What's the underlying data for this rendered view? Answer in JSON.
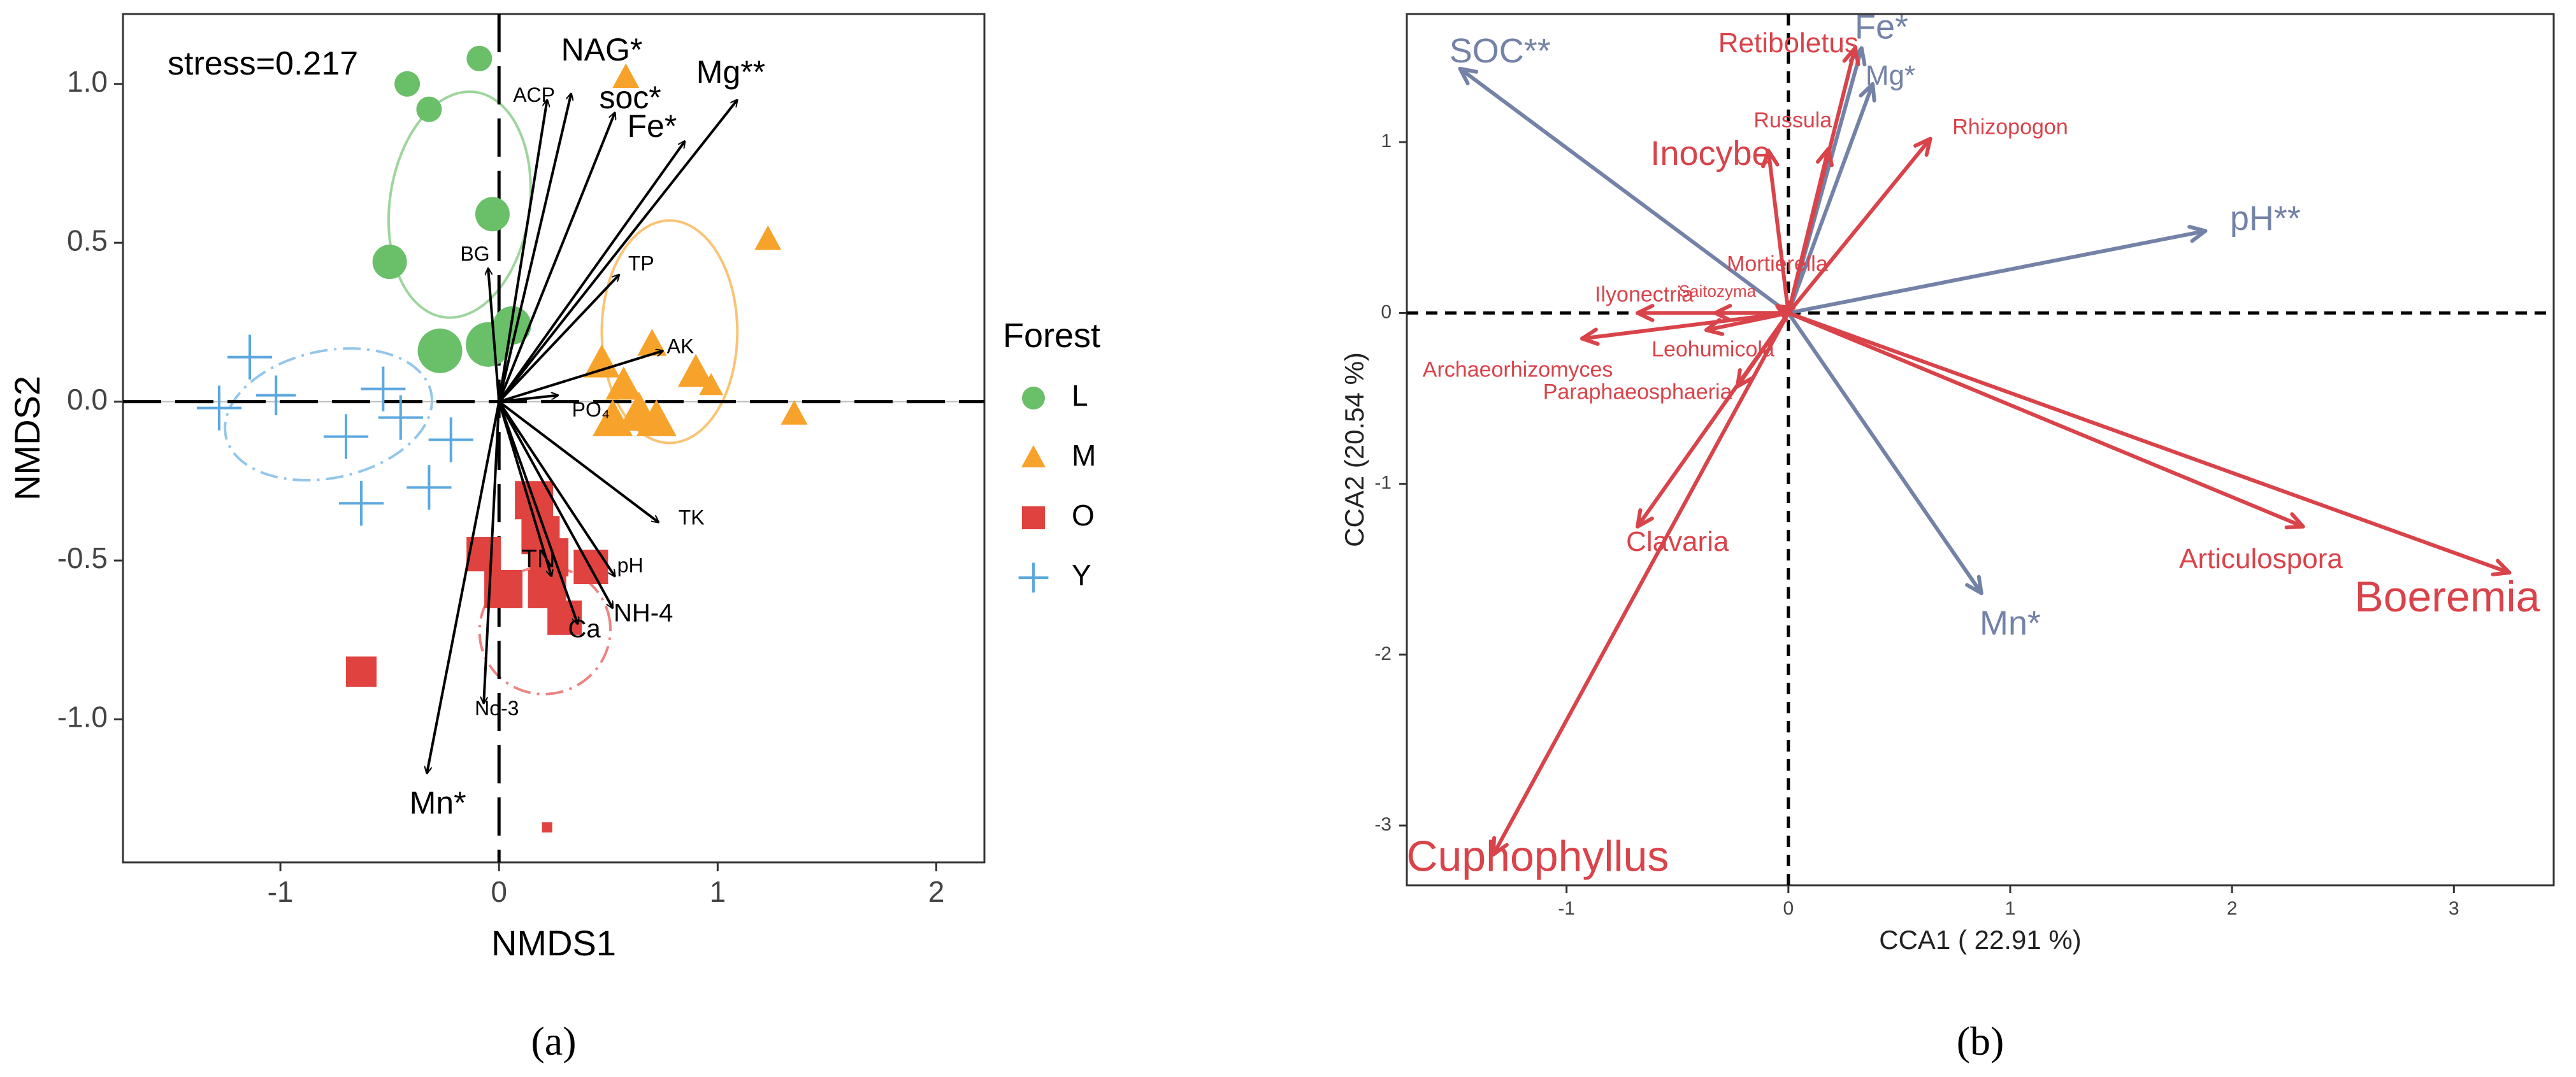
{
  "colors": {
    "L": "#6abf69",
    "M": "#f7a32b",
    "O": "#e0423f",
    "Y": "#5ba8df",
    "cca_red": "#d9434a",
    "cca_blue": "#7382a6",
    "axis": "#333333",
    "grid": "#bdbdbd"
  },
  "chart_data": [
    {
      "type": "scatter",
      "panel_caption": "(a)",
      "annotation": "stress=0.217",
      "xlabel": "NMDS1",
      "ylabel": "NMDS2",
      "xlim": [
        -1.72,
        2.22
      ],
      "ylim": [
        -1.45,
        1.22
      ],
      "xticks": [
        -1,
        0,
        1,
        2
      ],
      "yticks": [
        -1.0,
        -0.5,
        0.0,
        0.5,
        1.0
      ],
      "x_tick_labels": [
        "-1",
        "0",
        "1",
        "2"
      ],
      "y_tick_labels": [
        "-1.0",
        "-0.5",
        "0.0",
        "0.5",
        "1.0"
      ],
      "legend": {
        "title": "Forest",
        "position": "right",
        "entries": [
          {
            "key": "L",
            "label": "L",
            "shape": "circle"
          },
          {
            "key": "M",
            "label": "M",
            "shape": "triangle"
          },
          {
            "key": "O",
            "label": "O",
            "shape": "square"
          },
          {
            "key": "Y",
            "label": "Y",
            "shape": "plus"
          }
        ]
      },
      "series": [
        {
          "name": "L",
          "shape": "circle",
          "points": [
            [
              -0.42,
              1.0,
              1
            ],
            [
              -0.32,
              0.92,
              1
            ],
            [
              -0.09,
              1.08,
              1
            ],
            [
              -0.5,
              0.44,
              1.35
            ],
            [
              -0.03,
              0.59,
              1.35
            ],
            [
              -0.27,
              0.16,
              1.75
            ],
            [
              -0.05,
              0.18,
              1.75
            ],
            [
              0.06,
              0.24,
              1.5
            ]
          ]
        },
        {
          "name": "M",
          "shape": "triangle",
          "points": [
            [
              0.58,
              1.02,
              1
            ],
            [
              1.23,
              0.51,
              1
            ],
            [
              0.7,
              0.18,
              1.1
            ],
            [
              0.47,
              0.12,
              1.35
            ],
            [
              0.9,
              0.09,
              1.35
            ],
            [
              0.57,
              0.05,
              1.35
            ],
            [
              0.64,
              -0.04,
              1.6
            ],
            [
              0.52,
              -0.06,
              1.5
            ],
            [
              0.72,
              -0.06,
              1.5
            ],
            [
              1.35,
              -0.04,
              1
            ],
            [
              0.97,
              0.05,
              0.9
            ]
          ]
        },
        {
          "name": "O",
          "shape": "square",
          "points": [
            [
              0.16,
              -0.31,
              1.5
            ],
            [
              0.19,
              -0.42,
              1.5
            ],
            [
              -0.07,
              -0.48,
              1.35
            ],
            [
              0.23,
              -0.49,
              1.5
            ],
            [
              0.42,
              -0.52,
              1.35
            ],
            [
              0.02,
              -0.59,
              1.5
            ],
            [
              0.22,
              -0.59,
              1.5
            ],
            [
              0.3,
              -0.68,
              1.35
            ],
            [
              -0.63,
              -0.85,
              1.2
            ],
            [
              0.22,
              -1.34,
              0.4
            ]
          ]
        },
        {
          "name": "Y",
          "shape": "plus",
          "points": [
            [
              -1.14,
              0.14,
              1.35
            ],
            [
              -1.02,
              0.02,
              1.2
            ],
            [
              -1.28,
              -0.02,
              1.35
            ],
            [
              -0.53,
              0.04,
              1.35
            ],
            [
              -0.45,
              -0.05,
              1.35
            ],
            [
              -0.7,
              -0.11,
              1.35
            ],
            [
              -0.22,
              -0.12,
              1.35
            ],
            [
              -0.32,
              -0.27,
              1.35
            ],
            [
              -0.63,
              -0.32,
              1.35
            ]
          ]
        }
      ],
      "ellipses": [
        {
          "group": "L",
          "cx": -0.18,
          "cy": 0.62,
          "rx": 0.52,
          "ry": 0.22,
          "angle_deg": -82
        },
        {
          "group": "M",
          "cx": 0.78,
          "cy": 0.22,
          "rx": 0.31,
          "ry": 0.35,
          "angle_deg": 0
        },
        {
          "group": "O",
          "cx": 0.21,
          "cy": -0.72,
          "rx": 0.3,
          "ry": 0.2,
          "angle_deg": -15
        },
        {
          "group": "Y",
          "cx": -0.78,
          "cy": -0.04,
          "rx": 0.48,
          "ry": 0.2,
          "angle_deg": -12
        }
      ],
      "vectors": [
        {
          "label": "NAG*",
          "x": 0.33,
          "y": 0.97,
          "lx": 0.47,
          "ly": 1.1,
          "size": "large"
        },
        {
          "label": "ACP",
          "x": 0.22,
          "y": 0.95,
          "lx": 0.16,
          "ly": 0.96,
          "size": "small"
        },
        {
          "label": "soc*",
          "x": 0.53,
          "y": 0.91,
          "lx": 0.6,
          "ly": 0.95,
          "size": "large"
        },
        {
          "label": "Mg**",
          "x": 1.09,
          "y": 0.95,
          "lx": 1.06,
          "ly": 1.03,
          "size": "large"
        },
        {
          "label": "Fe*",
          "x": 0.85,
          "y": 0.82,
          "lx": 0.7,
          "ly": 0.86,
          "size": "large"
        },
        {
          "label": "BG",
          "x": -0.05,
          "y": 0.42,
          "lx": -0.11,
          "ly": 0.46,
          "size": "small"
        },
        {
          "label": "TP",
          "x": 0.55,
          "y": 0.4,
          "lx": 0.65,
          "ly": 0.43,
          "size": "small"
        },
        {
          "label": "AK",
          "x": 0.75,
          "y": 0.16,
          "lx": 0.83,
          "ly": 0.17,
          "size": "small"
        },
        {
          "label": "PO₄",
          "x": 0.27,
          "y": 0.02,
          "lx": 0.42,
          "ly": -0.03,
          "size": "small"
        },
        {
          "label": "TK",
          "x": 0.73,
          "y": -0.38,
          "lx": 0.88,
          "ly": -0.37,
          "size": "small"
        },
        {
          "label": "TN",
          "x": 0.24,
          "y": -0.55,
          "lx": 0.18,
          "ly": -0.5,
          "size": "medium"
        },
        {
          "label": "pH",
          "x": 0.53,
          "y": -0.55,
          "lx": 0.6,
          "ly": -0.52,
          "size": "small"
        },
        {
          "label": "NH-4",
          "x": 0.52,
          "y": -0.65,
          "lx": 0.66,
          "ly": -0.67,
          "size": "medium"
        },
        {
          "label": "Ca",
          "x": 0.36,
          "y": -0.7,
          "lx": 0.39,
          "ly": -0.72,
          "size": "medium"
        },
        {
          "label": "No-3",
          "x": -0.07,
          "y": -0.95,
          "lx": -0.01,
          "ly": -0.97,
          "size": "small"
        },
        {
          "label": "Mn*",
          "x": -0.33,
          "y": -1.17,
          "lx": -0.28,
          "ly": -1.27,
          "size": "large"
        }
      ]
    },
    {
      "type": "scatter",
      "panel_caption": "(b)",
      "xlabel": "CCA1 ( 22.91 %)",
      "ylabel": "CCA2 (20.54 %)",
      "xlim": [
        -1.72,
        3.45
      ],
      "ylim": [
        -3.35,
        1.75
      ],
      "xticks": [
        -1,
        0,
        1,
        2,
        3
      ],
      "yticks": [
        -3,
        -2,
        -1,
        0,
        1
      ],
      "x_tick_labels": [
        "-1",
        "0",
        "1",
        "2",
        "3"
      ],
      "y_tick_labels": [
        "-3",
        "-2",
        "-1",
        "0",
        "1"
      ],
      "environment_vectors": [
        {
          "label": "SOC**",
          "x": -1.48,
          "y": 1.43,
          "lx": -1.3,
          "ly": 1.52,
          "size": "large"
        },
        {
          "label": "Fe*",
          "x": 0.33,
          "y": 1.55,
          "lx": 0.42,
          "ly": 1.66,
          "size": "large"
        },
        {
          "label": "Mg*",
          "x": 0.38,
          "y": 1.34,
          "lx": 0.46,
          "ly": 1.38,
          "size": "medium"
        },
        {
          "label": "pH**",
          "x": 1.88,
          "y": 0.48,
          "lx": 2.15,
          "ly": 0.54,
          "size": "large"
        },
        {
          "label": "Mn*",
          "x": 0.87,
          "y": -1.64,
          "lx": 1.0,
          "ly": -1.83,
          "size": "large"
        }
      ],
      "species_vectors": [
        {
          "label": "Retiboletus",
          "x": 0.3,
          "y": 1.55,
          "lx": 0.0,
          "ly": 1.57,
          "size": "medium"
        },
        {
          "label": "Russula",
          "x": 0.18,
          "y": 0.96,
          "lx": 0.02,
          "ly": 1.12,
          "size": "small"
        },
        {
          "label": "Rhizopogon",
          "x": 0.64,
          "y": 1.02,
          "lx": 1.0,
          "ly": 1.08,
          "size": "small"
        },
        {
          "label": "Inocybe",
          "x": -0.09,
          "y": 0.95,
          "lx": -0.35,
          "ly": 0.92,
          "size": "large"
        },
        {
          "label": "Mortierella",
          "x": -0.05,
          "y": 0.04,
          "lx": -0.05,
          "ly": 0.28,
          "size": "small"
        },
        {
          "label": "Ilyonectria",
          "x": -0.68,
          "y": 0.0,
          "lx": -0.65,
          "ly": 0.1,
          "size": "small"
        },
        {
          "label": "Saitozyma",
          "x": -0.33,
          "y": 0.0,
          "lx": -0.32,
          "ly": 0.12,
          "size": "tiny"
        },
        {
          "label": "Leohumicola",
          "x": -0.37,
          "y": -0.1,
          "lx": -0.34,
          "ly": -0.22,
          "size": "small"
        },
        {
          "label": "Archaeorhizomyces",
          "x": -0.93,
          "y": -0.15,
          "lx": -1.22,
          "ly": -0.34,
          "size": "small"
        },
        {
          "label": "Paraphaeosphaeria",
          "x": -0.23,
          "y": -0.43,
          "lx": -0.68,
          "ly": -0.47,
          "size": "small"
        },
        {
          "label": "Clavaria",
          "x": -0.68,
          "y": -1.25,
          "lx": -0.5,
          "ly": -1.35,
          "size": "medium"
        },
        {
          "label": "Articulospora",
          "x": 2.32,
          "y": -1.25,
          "lx": 2.13,
          "ly": -1.45,
          "size": "medium"
        },
        {
          "label": "Boeremia",
          "x": 3.25,
          "y": -1.52,
          "lx": 2.97,
          "ly": -1.68,
          "size": "xlarge"
        },
        {
          "label": "Cuphophyllus",
          "x": -1.33,
          "y": -3.17,
          "lx": -1.13,
          "ly": -3.2,
          "size": "xlarge"
        }
      ]
    }
  ]
}
